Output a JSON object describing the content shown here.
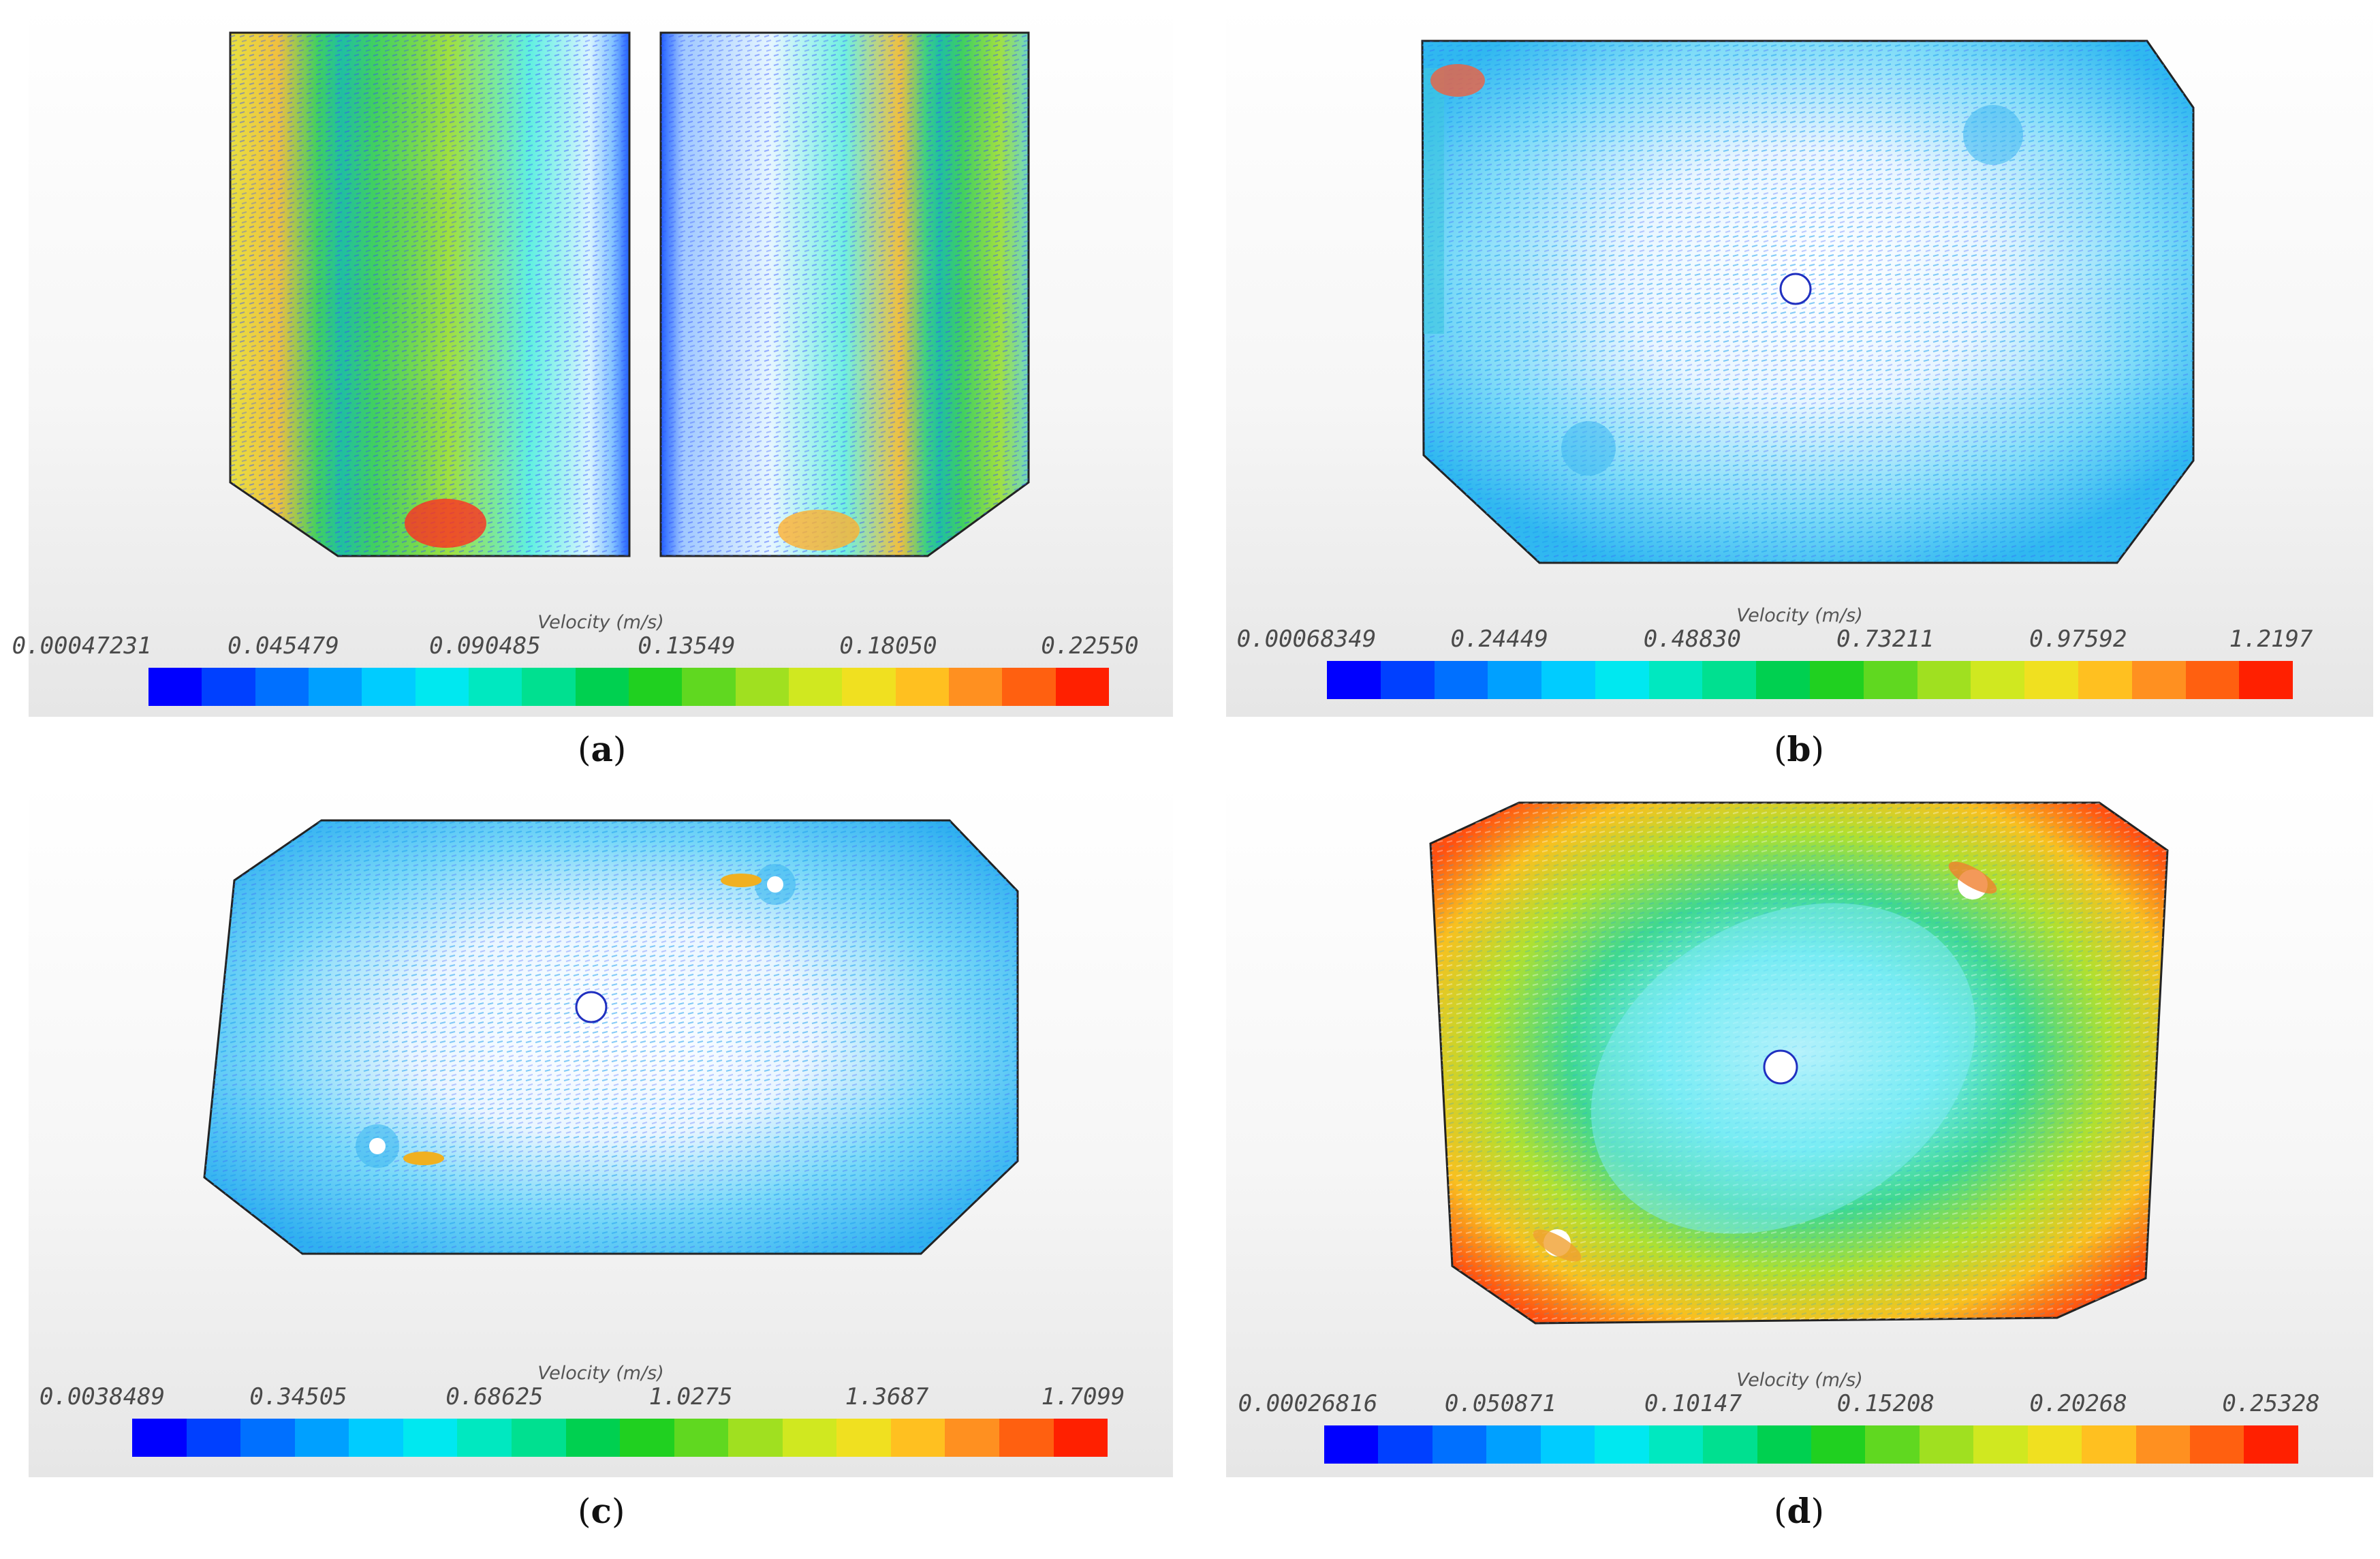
{
  "panels": {
    "a": {
      "legend_title": "Velocity (m/s)",
      "ticks": [
        "0.00047231",
        "0.045479",
        "0.090485",
        "0.13549",
        "0.18050",
        "0.22550"
      ],
      "caption_open": "(",
      "caption_letter": "a",
      "caption_close": ")"
    },
    "b": {
      "legend_title": "Velocity (m/s)",
      "ticks": [
        "0.00068349",
        "0.24449",
        "0.48830",
        "0.73211",
        "0.97592",
        "1.2197"
      ],
      "caption_open": "(",
      "caption_letter": "b",
      "caption_close": ")"
    },
    "c": {
      "legend_title": "Velocity (m/s)",
      "ticks": [
        "0.0038489",
        "0.34505",
        "0.68625",
        "1.0275",
        "1.3687",
        "1.7099"
      ],
      "caption_open": "(",
      "caption_letter": "c",
      "caption_close": ")"
    },
    "d": {
      "legend_title": "Velocity (m/s)",
      "ticks": [
        "0.00026816",
        "0.050871",
        "0.10147",
        "0.15208",
        "0.20268",
        "0.25328"
      ],
      "caption_open": "(",
      "caption_letter": "d",
      "caption_close": ")"
    }
  },
  "colors": {
    "colormap": [
      "#0000ff",
      "#0040ff",
      "#0070ff",
      "#00a0ff",
      "#00ccff",
      "#00e8f0",
      "#00e8c0",
      "#00e090",
      "#00d050",
      "#20d020",
      "#60d820",
      "#a0e020",
      "#d0e820",
      "#f0e020",
      "#ffc020",
      "#ff9020",
      "#ff6010",
      "#ff2000"
    ],
    "outline": "#222222",
    "vector_low": "#3050ff"
  }
}
